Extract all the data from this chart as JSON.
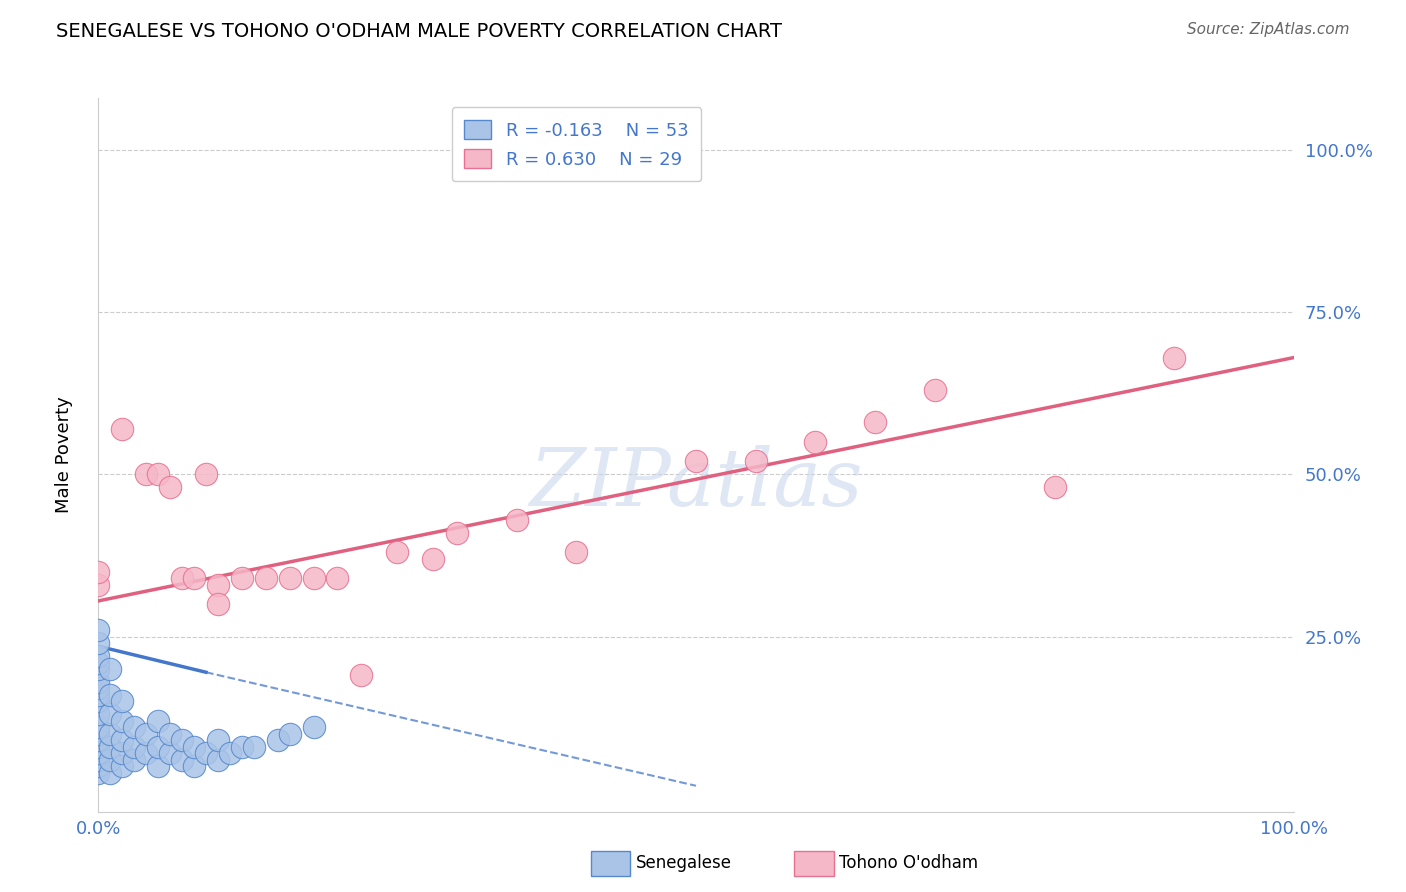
{
  "title": "SENEGALESE VS TOHONO O'ODHAM MALE POVERTY CORRELATION CHART",
  "source": "Source: ZipAtlas.com",
  "ylabel": "Male Poverty",
  "xlim": [
    0,
    1
  ],
  "ylim": [
    -0.02,
    1.08
  ],
  "blue_R": -0.163,
  "blue_N": 53,
  "pink_R": 0.63,
  "pink_N": 29,
  "blue_color": "#aac4e8",
  "pink_color": "#f5b8c8",
  "blue_edge_color": "#5588cc",
  "pink_edge_color": "#e87090",
  "blue_line_color": "#4477cc",
  "pink_line_color": "#e06080",
  "tick_color": "#4477cc",
  "legend_blue_label": "Senegalese",
  "legend_pink_label": "Tohono O'odham",
  "watermark": "ZIPatlas",
  "blue_x": [
    0.0,
    0.0,
    0.0,
    0.0,
    0.0,
    0.0,
    0.0,
    0.0,
    0.0,
    0.0,
    0.0,
    0.0,
    0.0,
    0.0,
    0.0,
    0.0,
    0.0,
    0.0,
    0.01,
    0.01,
    0.01,
    0.01,
    0.01,
    0.01,
    0.01,
    0.02,
    0.02,
    0.02,
    0.02,
    0.02,
    0.03,
    0.03,
    0.03,
    0.04,
    0.04,
    0.05,
    0.05,
    0.05,
    0.06,
    0.06,
    0.07,
    0.07,
    0.08,
    0.08,
    0.09,
    0.1,
    0.1,
    0.11,
    0.12,
    0.13,
    0.15,
    0.16,
    0.18
  ],
  "blue_y": [
    0.04,
    0.05,
    0.06,
    0.07,
    0.08,
    0.09,
    0.1,
    0.11,
    0.13,
    0.15,
    0.16,
    0.17,
    0.18,
    0.2,
    0.21,
    0.22,
    0.24,
    0.26,
    0.04,
    0.06,
    0.08,
    0.1,
    0.13,
    0.16,
    0.2,
    0.05,
    0.07,
    0.09,
    0.12,
    0.15,
    0.06,
    0.08,
    0.11,
    0.07,
    0.1,
    0.05,
    0.08,
    0.12,
    0.07,
    0.1,
    0.06,
    0.09,
    0.05,
    0.08,
    0.07,
    0.06,
    0.09,
    0.07,
    0.08,
    0.08,
    0.09,
    0.1,
    0.11
  ],
  "pink_x": [
    0.0,
    0.0,
    0.02,
    0.04,
    0.05,
    0.06,
    0.07,
    0.08,
    0.09,
    0.1,
    0.1,
    0.12,
    0.14,
    0.16,
    0.18,
    0.2,
    0.22,
    0.25,
    0.28,
    0.3,
    0.35,
    0.4,
    0.5,
    0.55,
    0.6,
    0.65,
    0.7,
    0.8,
    0.9
  ],
  "pink_y": [
    0.33,
    0.35,
    0.57,
    0.5,
    0.5,
    0.48,
    0.34,
    0.34,
    0.5,
    0.33,
    0.3,
    0.34,
    0.34,
    0.34,
    0.34,
    0.34,
    0.19,
    0.38,
    0.37,
    0.41,
    0.43,
    0.38,
    0.52,
    0.52,
    0.55,
    0.58,
    0.63,
    0.48,
    0.68
  ],
  "pink_line_x0": 0.0,
  "pink_line_x1": 1.0,
  "pink_line_y0": 0.305,
  "pink_line_y1": 0.68,
  "blue_line_solid_x0": 0.0,
  "blue_line_solid_x1": 0.09,
  "blue_line_solid_y0": 0.235,
  "blue_line_solid_y1": 0.195,
  "blue_line_dash_x0": 0.09,
  "blue_line_dash_x1": 0.5,
  "blue_line_dash_y0": 0.195,
  "blue_line_dash_y1": 0.02
}
